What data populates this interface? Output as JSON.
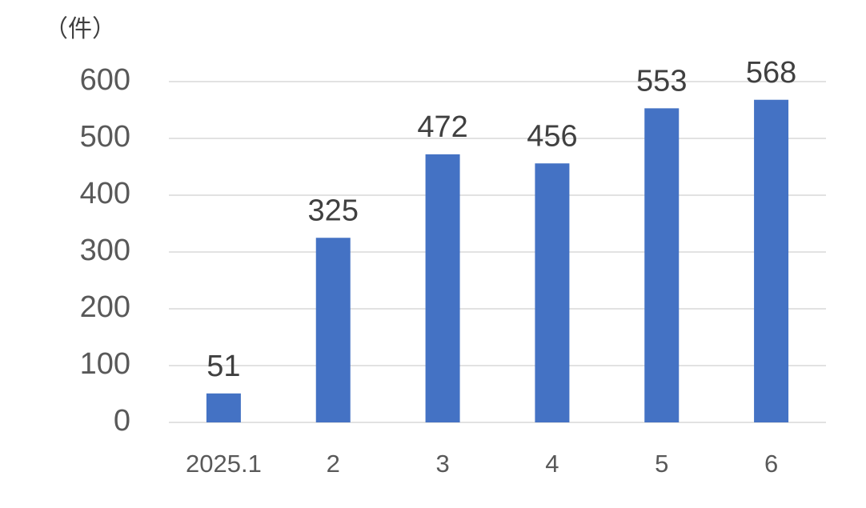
{
  "chart_data": {
    "type": "bar",
    "y_label": "（件）",
    "categories": [
      "2025.1",
      "2",
      "3",
      "4",
      "5",
      "6"
    ],
    "values": [
      51,
      325,
      472,
      456,
      553,
      568
    ],
    "color": "#4472c4",
    "ylim": [
      0,
      600
    ],
    "yticks": [
      0,
      100,
      200,
      300,
      400,
      500,
      600
    ],
    "grid": true,
    "data_labels": true
  }
}
